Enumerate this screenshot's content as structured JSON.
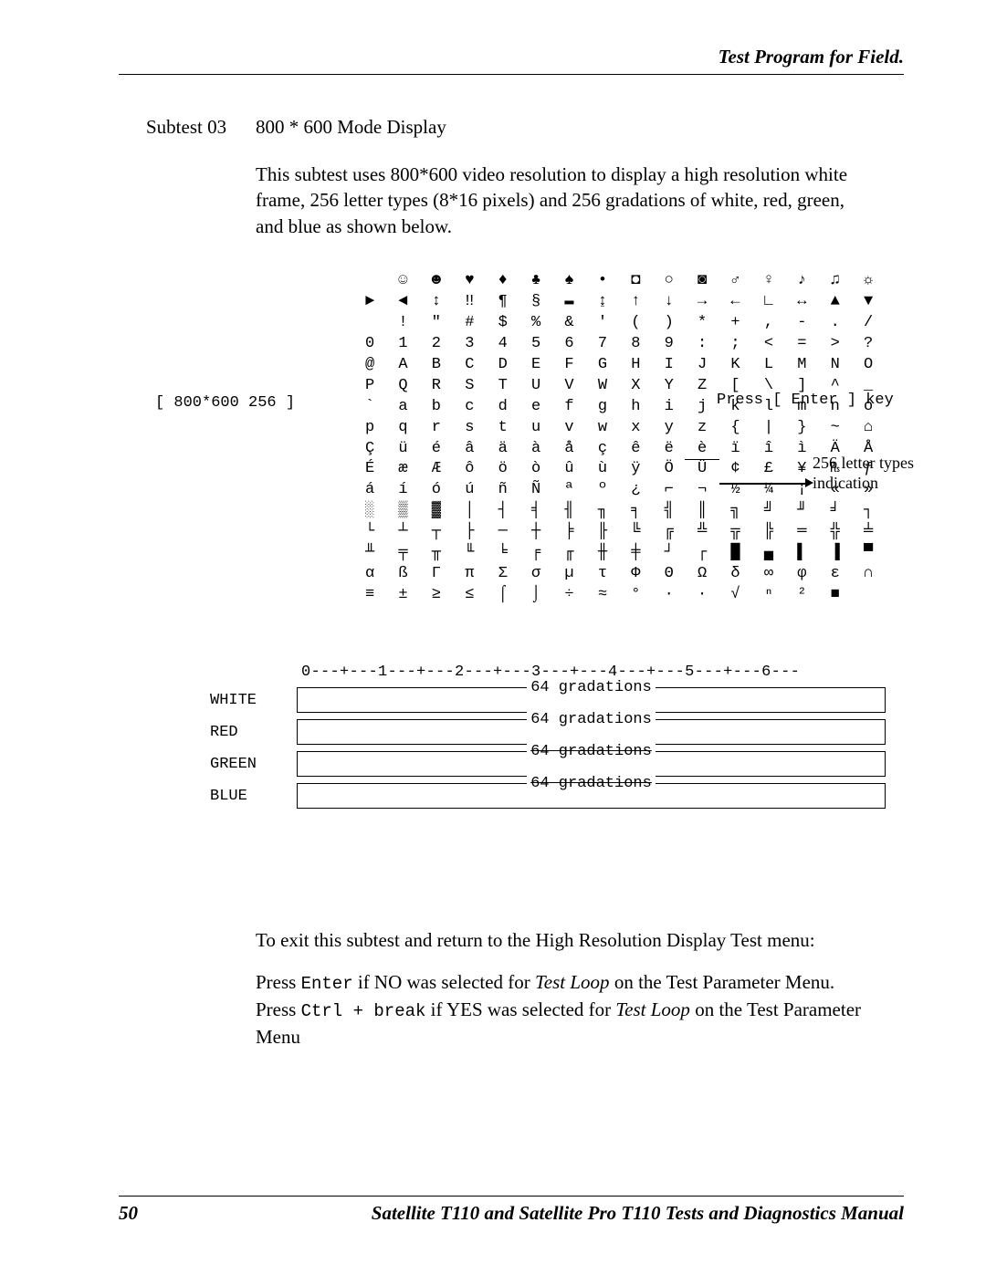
{
  "header": {
    "title": "Test Program for Field."
  },
  "subtest": {
    "label": "Subtest 03",
    "title": "800 * 600 Mode Display"
  },
  "intro": {
    "text": "This subtest uses 800*600 video resolution to display a high resolution white frame, 256 letter types (8*16 pixels) and 256 gradations of white, red, green, and blue as shown below."
  },
  "diagram": {
    "left_label": "[ 800*600 256 ]",
    "right_top": "Press [ Enter ] key",
    "right_mid1": "256 letter types",
    "right_mid2": "indication",
    "char_rows": [
      "  ☺ ☻ ♥ ♦ ♣ ♠ • ◘ ○ ◙ ♂ ♀ ♪ ♫ ☼",
      "► ◄ ↕ ‼ ¶ § ▬ ↨ ↑ ↓ → ← ∟ ↔ ▲ ▼",
      "  ! \" # $ % & ' ( ) * + , - . /",
      "0 1 2 3 4 5 6 7 8 9 : ; < = > ?",
      "@ A B C D E F G H I J K L M N O",
      "P Q R S T U V W X Y Z [ \\ ] ^ _",
      "` a b c d e f g h i j k l m n o",
      "p q r s t u v w x y z { | } ~ ⌂",
      "Ç ü é â ä à å ç ê ë è ï î ì Ä Å",
      "É æ Æ ô ö ò û ù ÿ Ö Ü ¢ £ ¥ ₧ ƒ",
      "á í ó ú ñ Ñ ª º ¿ ⌐ ¬ ½ ¼ ¡ « »",
      "░ ▒ ▓ │ ┤ ╡ ╢ ╖ ╕ ╣ ║ ╗ ╝ ╜ ╛ ┐",
      "└ ┴ ┬ ├ ─ ┼ ╞ ╟ ╚ ╔ ╩ ╦ ╠ ═ ╬ ╧",
      "╨ ╤ ╥ ╙ ╘ ╒ ╓ ╫ ╪ ┘ ┌ █ ▄ ▌ ▐ ▀",
      "α ß Γ π Σ σ µ τ Φ Θ Ω δ ∞ φ ε ∩",
      "≡ ± ≥ ≤ ⌠ ⌡ ÷ ≈ ° ∙ · √ ⁿ ² ■  "
    ]
  },
  "gradation": {
    "ruler": "0---+---1---+---2---+---3---+---4---+---5---+---6---",
    "rows": [
      {
        "label": "WHITE",
        "box": "64 gradations",
        "struck": false
      },
      {
        "label": "RED",
        "box": "64 gradations",
        "struck": false
      },
      {
        "label": "GREEN",
        "box": "64 gradations",
        "struck": true
      },
      {
        "label": "BLUE",
        "box": "64 gradations",
        "struck": true
      }
    ]
  },
  "exit": {
    "line1": "To exit this subtest and return to the High Resolution Display Test menu:",
    "press_enter": "Enter",
    "press_ctrl_break": "Ctrl + break",
    "if_no_pre": "Press ",
    "if_no_mid": " if NO was selected for ",
    "if_no_post": " on the Test Parameter Menu.",
    "if_yes_pre": "Press ",
    "if_yes_mid": " if YES was selected for ",
    "if_yes_post": " on the Test Parameter Menu",
    "test_loop": "Test Loop"
  },
  "footer": {
    "page": "50",
    "title": "Satellite T110 and Satellite Pro T110 Tests and Diagnostics Manual"
  }
}
